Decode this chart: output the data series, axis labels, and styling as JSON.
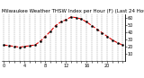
{
  "title": "Milwaukee Weather THSW Index per Hour (F) (Last 24 Hours)",
  "x_values": [
    0,
    1,
    2,
    3,
    4,
    5,
    6,
    7,
    8,
    9,
    10,
    11,
    12,
    13,
    14,
    15,
    16,
    17,
    18,
    19,
    20,
    21,
    22,
    23
  ],
  "y_values": [
    22,
    21,
    20,
    19,
    20,
    21,
    22,
    27,
    34,
    41,
    49,
    54,
    57,
    61,
    60,
    58,
    54,
    49,
    44,
    39,
    34,
    29,
    25,
    22
  ],
  "y_min": 0,
  "y_max": 65,
  "y_ticks": [
    10,
    20,
    30,
    40,
    50,
    60
  ],
  "x_ticks_major": [
    0,
    4,
    8,
    12,
    16,
    20
  ],
  "x_ticks_all": [
    0,
    1,
    2,
    3,
    4,
    5,
    6,
    7,
    8,
    9,
    10,
    11,
    12,
    13,
    14,
    15,
    16,
    17,
    18,
    19,
    20,
    21,
    22,
    23
  ],
  "line_color": "#dd0000",
  "marker_color": "#000000",
  "bg_color": "#ffffff",
  "grid_color": "#888888",
  "title_color": "#000000",
  "title_fontsize": 4.0,
  "tick_fontsize": 3.5,
  "line_width": 0.8,
  "marker_size": 1.5
}
